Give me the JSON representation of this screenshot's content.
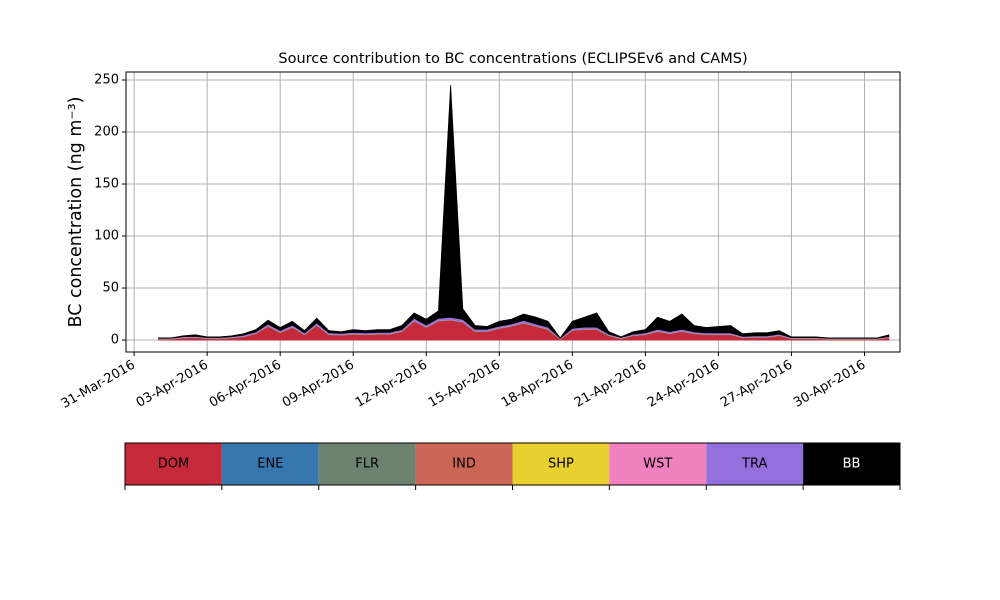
{
  "chart_data": {
    "type": "stacked_area",
    "title": "Source contribution to BC concentrations (ECLIPSEv6 and CAMS)",
    "y_label": "BC concentration (ng m⁻³)",
    "x": [
      "2016-04-01T00:00",
      "2016-04-01T12:00",
      "2016-04-02T00:00",
      "2016-04-02T12:00",
      "2016-04-03T00:00",
      "2016-04-03T12:00",
      "2016-04-04T00:00",
      "2016-04-04T12:00",
      "2016-04-05T00:00",
      "2016-04-05T12:00",
      "2016-04-06T00:00",
      "2016-04-06T12:00",
      "2016-04-07T00:00",
      "2016-04-07T12:00",
      "2016-04-08T00:00",
      "2016-04-08T12:00",
      "2016-04-09T00:00",
      "2016-04-09T12:00",
      "2016-04-10T00:00",
      "2016-04-10T12:00",
      "2016-04-11T00:00",
      "2016-04-11T12:00",
      "2016-04-12T00:00",
      "2016-04-12T12:00",
      "2016-04-13T00:00",
      "2016-04-13T12:00",
      "2016-04-14T00:00",
      "2016-04-14T12:00",
      "2016-04-15T00:00",
      "2016-04-15T12:00",
      "2016-04-16T00:00",
      "2016-04-16T12:00",
      "2016-04-17T00:00",
      "2016-04-17T12:00",
      "2016-04-18T00:00",
      "2016-04-18T12:00",
      "2016-04-19T00:00",
      "2016-04-19T12:00",
      "2016-04-20T00:00",
      "2016-04-20T12:00",
      "2016-04-21T00:00",
      "2016-04-21T12:00",
      "2016-04-22T00:00",
      "2016-04-22T12:00",
      "2016-04-23T00:00",
      "2016-04-23T12:00",
      "2016-04-24T00:00",
      "2016-04-24T12:00",
      "2016-04-25T00:00",
      "2016-04-25T12:00",
      "2016-04-26T00:00",
      "2016-04-26T12:00",
      "2016-04-27T00:00",
      "2016-04-27T12:00",
      "2016-04-28T00:00",
      "2016-04-28T12:00",
      "2016-04-29T00:00",
      "2016-04-29T12:00",
      "2016-04-30T00:00",
      "2016-04-30T12:00",
      "2016-05-01T00:00"
    ],
    "series": [
      {
        "name": "DOM",
        "color": "#c62a3a",
        "values": [
          0.6,
          0.6,
          1.8,
          2.2,
          1.2,
          1.2,
          1.8,
          3.0,
          6,
          13,
          7,
          12,
          5,
          14,
          5,
          4.5,
          5.5,
          5,
          5.5,
          5.5,
          8,
          18,
          12,
          18,
          19,
          17,
          8,
          8,
          11,
          13,
          16,
          13,
          10,
          0.6,
          9,
          10,
          10,
          4,
          1.2,
          4,
          5,
          8,
          6,
          8,
          6,
          5,
          5,
          5,
          2,
          2.5,
          2.5,
          4,
          1,
          1,
          1,
          0.6,
          0.6,
          0.6,
          0.6,
          0.6,
          2
        ]
      },
      {
        "name": "ENE",
        "color": "#3777b0",
        "values": [
          0.2,
          0.2,
          0.2,
          0.2,
          0.2,
          0.2,
          0.2,
          0.2,
          0.2,
          0.2,
          0.2,
          0.2,
          0.2,
          0.2,
          0.2,
          0.2,
          0.2,
          0.2,
          0.2,
          0.2,
          0.2,
          0.2,
          0.2,
          0.2,
          0.2,
          0.2,
          0.2,
          0.2,
          0.2,
          0.2,
          0.2,
          0.2,
          0.2,
          0.2,
          0.2,
          0.2,
          0.2,
          0.2,
          0.2,
          0.2,
          0.2,
          0.2,
          0.2,
          0.2,
          0.2,
          0.2,
          0.2,
          0.2,
          0.2,
          0.2,
          0.2,
          0.2,
          0.2,
          0.2,
          0.2,
          0.2,
          0.2,
          0.2,
          0.2,
          0.2,
          0.2
        ]
      },
      {
        "name": "FLR",
        "color": "#6e8270",
        "values": [
          0.1,
          0.1,
          0.1,
          0.1,
          0.1,
          0.1,
          0.1,
          0.1,
          0.1,
          0.1,
          0.1,
          0.1,
          0.1,
          0.1,
          0.1,
          0.1,
          0.1,
          0.1,
          0.1,
          0.1,
          0.1,
          0.1,
          0.1,
          0.1,
          0.1,
          0.1,
          0.1,
          0.1,
          0.1,
          0.1,
          0.1,
          0.1,
          0.1,
          0.1,
          0.1,
          0.1,
          0.1,
          0.1,
          0.1,
          0.1,
          0.1,
          0.1,
          0.1,
          0.1,
          0.1,
          0.1,
          0.1,
          0.1,
          0.1,
          0.1,
          0.1,
          0.1,
          0.1,
          0.1,
          0.1,
          0.1,
          0.1,
          0.1,
          0.1,
          0.1,
          0.1
        ]
      },
      {
        "name": "IND",
        "color": "#cb6556",
        "values": [
          0.3,
          0.3,
          0.3,
          0.3,
          0.3,
          0.3,
          0.3,
          0.3,
          0.3,
          0.3,
          0.3,
          0.3,
          0.3,
          0.3,
          0.3,
          0.3,
          0.3,
          0.3,
          0.3,
          0.3,
          0.3,
          0.3,
          0.3,
          0.3,
          0.3,
          0.3,
          0.3,
          0.3,
          0.3,
          0.3,
          0.3,
          0.3,
          0.3,
          0.3,
          0.3,
          0.3,
          0.3,
          0.3,
          0.3,
          0.3,
          0.3,
          0.3,
          0.3,
          0.3,
          0.3,
          0.3,
          0.3,
          0.3,
          0.3,
          0.3,
          0.3,
          0.3,
          0.3,
          0.3,
          0.3,
          0.3,
          0.3,
          0.3,
          0.3,
          0.3,
          0.3
        ]
      },
      {
        "name": "SHP",
        "color": "#e8d12f",
        "values": [
          0.1,
          0.1,
          0.1,
          0.1,
          0.1,
          0.1,
          0.1,
          0.1,
          0.1,
          0.1,
          0.1,
          0.1,
          0.1,
          0.1,
          0.1,
          0.1,
          0.1,
          0.1,
          0.1,
          0.1,
          0.1,
          0.1,
          0.1,
          0.1,
          0.1,
          0.1,
          0.1,
          0.1,
          0.1,
          0.1,
          0.1,
          0.1,
          0.1,
          0.1,
          0.1,
          0.1,
          0.1,
          0.1,
          0.1,
          0.1,
          0.1,
          0.1,
          0.1,
          0.1,
          0.1,
          0.1,
          0.1,
          0.1,
          0.1,
          0.1,
          0.1,
          0.1,
          0.1,
          0.1,
          0.1,
          0.1,
          0.1,
          0.1,
          0.1,
          0.1,
          0.1
        ]
      },
      {
        "name": "WST",
        "color": "#f080be",
        "values": [
          0.2,
          0.2,
          0.2,
          0.2,
          0.2,
          0.2,
          0.2,
          0.2,
          0.2,
          0.2,
          0.2,
          0.2,
          0.2,
          0.2,
          0.2,
          0.2,
          0.2,
          0.2,
          0.2,
          0.2,
          0.2,
          0.2,
          0.2,
          0.2,
          0.2,
          0.2,
          0.2,
          0.2,
          0.2,
          0.2,
          0.2,
          0.2,
          0.2,
          0.2,
          0.2,
          0.2,
          0.2,
          0.2,
          0.2,
          0.2,
          0.2,
          0.2,
          0.2,
          0.2,
          0.2,
          0.2,
          0.2,
          0.2,
          0.2,
          0.2,
          0.2,
          0.2,
          0.2,
          0.2,
          0.2,
          0.2,
          0.2,
          0.2,
          0.2,
          0.2,
          0.2
        ]
      },
      {
        "name": "TRA",
        "color": "#9370db",
        "values": [
          0.3,
          0.3,
          0.5,
          0.5,
          0.4,
          0.4,
          0.5,
          0.8,
          1,
          1.5,
          1.2,
          1.5,
          1,
          1.5,
          1,
          1,
          1,
          1,
          1,
          1,
          1.2,
          2,
          1.5,
          2,
          2,
          2,
          1.5,
          1.5,
          1.5,
          1.5,
          2,
          1.5,
          1.5,
          0.3,
          1.5,
          1.5,
          1.5,
          0.8,
          0.4,
          0.8,
          1,
          1.5,
          1.2,
          1.5,
          1,
          1,
          1,
          1,
          0.6,
          0.6,
          0.6,
          0.8,
          0.4,
          0.4,
          0.4,
          0.3,
          0.3,
          0.3,
          0.3,
          0.3,
          0.5
        ]
      },
      {
        "name": "BB",
        "color": "#000000",
        "values": [
          0.2,
          0.2,
          0.8,
          1.4,
          0.5,
          0.5,
          0.8,
          1.3,
          2.1,
          3.6,
          2.9,
          3.6,
          2.1,
          4.6,
          2.1,
          1.6,
          2.6,
          2.1,
          2.6,
          2.6,
          3.9,
          5.1,
          5.6,
          7.1,
          223.1,
          10.1,
          3.6,
          2.6,
          4.6,
          4.6,
          6.1,
          6.6,
          5.6,
          0.2,
          6.6,
          9.6,
          13.6,
          2.3,
          0.5,
          2.3,
          3.1,
          11.6,
          9.9,
          14.6,
          6.1,
          5.1,
          6.1,
          7.1,
          2.5,
          3,
          3,
          3.3,
          0.7,
          0.7,
          0.7,
          0.2,
          0.2,
          0.2,
          0.2,
          0.2,
          1.6
        ]
      }
    ],
    "xlim": [
      "2016-03-30T16:00",
      "2016-05-01T11:00"
    ],
    "xticks": [
      {
        "value": "2016-03-31T00:00",
        "label": "31-Mar-2016"
      },
      {
        "value": "2016-04-03T00:00",
        "label": "03-Apr-2016"
      },
      {
        "value": "2016-04-06T00:00",
        "label": "06-Apr-2016"
      },
      {
        "value": "2016-04-09T00:00",
        "label": "09-Apr-2016"
      },
      {
        "value": "2016-04-12T00:00",
        "label": "12-Apr-2016"
      },
      {
        "value": "2016-04-15T00:00",
        "label": "15-Apr-2016"
      },
      {
        "value": "2016-04-18T00:00",
        "label": "18-Apr-2016"
      },
      {
        "value": "2016-04-21T00:00",
        "label": "21-Apr-2016"
      },
      {
        "value": "2016-04-24T00:00",
        "label": "24-Apr-2016"
      },
      {
        "value": "2016-04-27T00:00",
        "label": "27-Apr-2016"
      },
      {
        "value": "2016-04-30T00:00",
        "label": "30-Apr-2016"
      }
    ],
    "ylim": [
      -11.5,
      257.7
    ],
    "yticks": [
      0,
      50,
      100,
      150,
      200,
      250
    ],
    "grid": true
  }
}
